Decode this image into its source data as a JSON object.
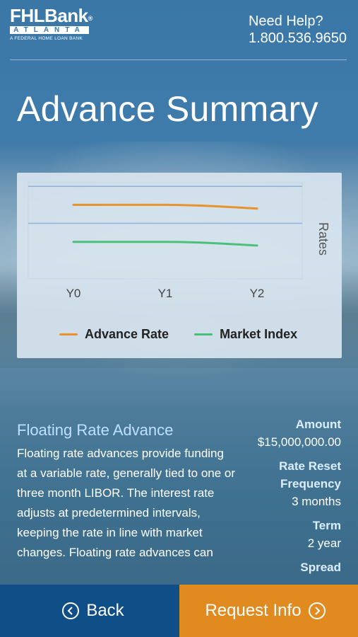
{
  "header": {
    "logo": {
      "name": "FHLBank",
      "sub": "ATLANTA",
      "tagline": "A FEDERAL HOME LOAN BANK"
    },
    "help_label": "Need Help?",
    "help_phone": "1.800.536.9650",
    "title": "Advance Summary"
  },
  "chart_data": {
    "type": "line",
    "categories": [
      "Y0",
      "Y1",
      "Y2"
    ],
    "series": [
      {
        "name": "Advance Rate",
        "color": "#e8922e",
        "values": [
          2.0,
          2.0,
          1.9
        ]
      },
      {
        "name": "Market Index",
        "color": "#4cc07a",
        "values": [
          1.0,
          1.0,
          0.9
        ]
      }
    ],
    "ylabel": "Rates",
    "ylim": [
      0,
      2.6
    ],
    "gridlines": [
      1.5,
      2.5
    ],
    "legend": "bottom"
  },
  "product": {
    "title": "Floating Rate Advance",
    "description": "Floating rate advances provide funding at a variable rate, generally tied to one or three month LIBOR. The interest rate adjusts at predetermined intervals, keeping the rate in line with market changes. Floating rate advances can"
  },
  "details": {
    "amount_label": "Amount",
    "amount_value": "$15,000,000.00",
    "reset_label": "Rate Reset Frequency",
    "reset_value": "3 months",
    "term_label": "Term",
    "term_value": "2 year",
    "spread_label": "Spread"
  },
  "buttons": {
    "back": "Back",
    "request": "Request Info"
  }
}
